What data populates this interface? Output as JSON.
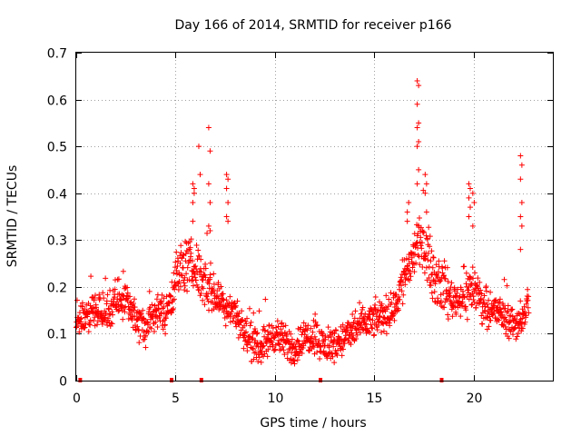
{
  "chart_data": {
    "type": "scatter",
    "title": "Day 166 of 2014, SRMTID for receiver p166",
    "xlabel": "GPS time / hours",
    "ylabel": "SRMTID / TECUs",
    "xlim": [
      0,
      24
    ],
    "ylim": [
      0,
      0.7
    ],
    "xticks": [
      0,
      5,
      10,
      15,
      20
    ],
    "xtick_labels": [
      "0",
      "5",
      "10",
      "15",
      "20"
    ],
    "yticks": [
      0,
      0.1,
      0.2,
      0.3,
      0.4,
      0.5,
      0.6,
      0.7
    ],
    "ytick_labels": [
      "0",
      "0.1",
      "0.2",
      "0.3",
      "0.4",
      "0.5",
      "0.6",
      "0.7"
    ],
    "grid": true,
    "marker": "plus",
    "color": "#ff0000",
    "series": [
      {
        "name": "SRMTID",
        "profile_x": [
          0.0,
          0.5,
          1.0,
          1.5,
          2.0,
          2.5,
          3.0,
          3.5,
          4.0,
          4.5,
          5.0,
          5.5,
          6.0,
          6.5,
          7.0,
          7.5,
          8.0,
          8.5,
          9.0,
          9.5,
          10.0,
          10.5,
          11.0,
          11.5,
          12.0,
          12.5,
          13.0,
          13.5,
          14.0,
          14.5,
          15.0,
          15.5,
          16.0,
          16.5,
          17.0,
          17.5,
          18.0,
          18.5,
          19.0,
          19.5,
          20.0,
          20.5,
          21.0,
          21.5,
          22.0,
          22.5,
          22.8
        ],
        "profile_y": [
          0.13,
          0.14,
          0.15,
          0.14,
          0.17,
          0.18,
          0.13,
          0.11,
          0.15,
          0.14,
          0.22,
          0.25,
          0.24,
          0.21,
          0.18,
          0.16,
          0.15,
          0.1,
          0.07,
          0.08,
          0.1,
          0.08,
          0.07,
          0.09,
          0.1,
          0.07,
          0.08,
          0.09,
          0.11,
          0.12,
          0.13,
          0.14,
          0.15,
          0.22,
          0.27,
          0.3,
          0.22,
          0.2,
          0.17,
          0.18,
          0.2,
          0.16,
          0.15,
          0.14,
          0.12,
          0.13,
          0.18
        ],
        "spread": 0.045,
        "spikes": [
          {
            "x": 5.9,
            "y": [
              0.38,
              0.4,
              0.42,
              0.41,
              0.34
            ]
          },
          {
            "x": 6.2,
            "y": [
              0.5,
              0.44
            ]
          },
          {
            "x": 6.7,
            "y": [
              0.54,
              0.49,
              0.42,
              0.38,
              0.33,
              0.32
            ]
          },
          {
            "x": 7.6,
            "y": [
              0.44,
              0.43,
              0.41,
              0.38,
              0.35,
              0.34
            ]
          },
          {
            "x": 16.7,
            "y": [
              0.36,
              0.38,
              0.34
            ]
          },
          {
            "x": 17.2,
            "y": [
              0.64,
              0.63,
              0.59,
              0.55,
              0.54,
              0.51,
              0.5,
              0.45,
              0.42
            ]
          },
          {
            "x": 17.6,
            "y": [
              0.44,
              0.42,
              0.4,
              0.36
            ]
          },
          {
            "x": 19.8,
            "y": [
              0.42,
              0.41,
              0.39,
              0.37,
              0.35
            ]
          },
          {
            "x": 20.0,
            "y": [
              0.4,
              0.38,
              0.33
            ]
          },
          {
            "x": 22.4,
            "y": [
              0.48,
              0.46,
              0.43,
              0.38,
              0.35,
              0.33,
              0.28
            ]
          }
        ]
      }
    ],
    "baseline_outage_marks_x": [
      0.2,
      4.8,
      6.3,
      12.3,
      18.4
    ]
  }
}
